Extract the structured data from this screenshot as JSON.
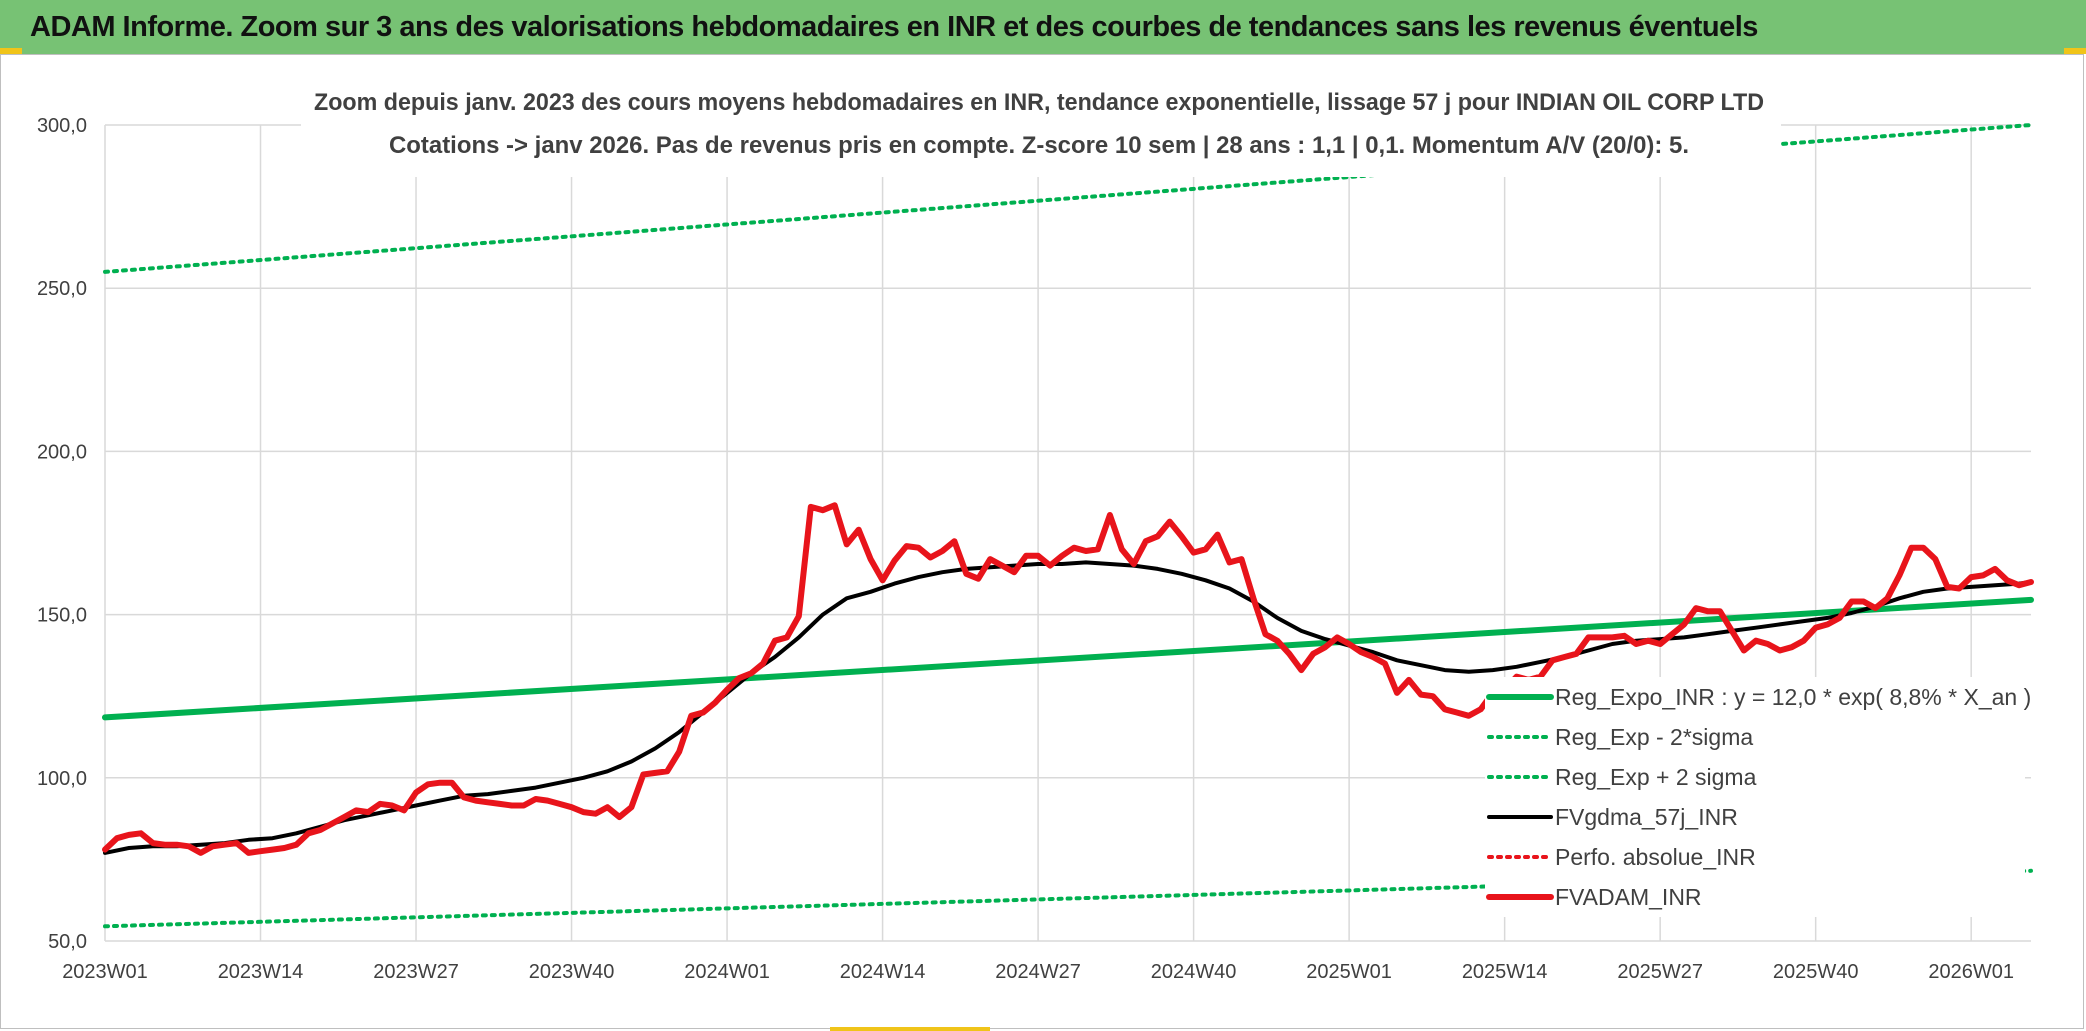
{
  "banner": {
    "title": "ADAM Informe. Zoom sur 3 ans des valorisations hebdomadaires en INR et des courbes de tendances sans les revenus éventuels"
  },
  "colors": {
    "banner_bg": "#77c274",
    "trend": "#00b050",
    "sma": "#000000",
    "price": "#e8141b",
    "grid": "#d9d9d9",
    "axis_text": "#404040"
  },
  "chart_data": {
    "type": "line",
    "title": "Zoom depuis janv. 2023 des cours moyens hebdomadaires en INR, tendance exponentielle, lissage 57 j pour INDIAN OIL CORP LTD",
    "subtitle": "Cotations -> janv 2026. Pas de revenus pris en compte. Z-score 10 sem | 28 ans : 1,1  | 0,1. Momentum A/V (20/0): 5.",
    "xlabel": "",
    "ylabel": "",
    "ylim": [
      50,
      300
    ],
    "yticks": [
      "50,0",
      "100,0",
      "150,0",
      "200,0",
      "250,0",
      "300,0"
    ],
    "xticks": [
      "2023W01",
      "2023W14",
      "2023W27",
      "2023W40",
      "2024W01",
      "2024W14",
      "2024W27",
      "2024W40",
      "2025W01",
      "2025W14",
      "2025W27",
      "2025W40",
      "2026W01"
    ],
    "x_range_weeks": [
      0,
      161
    ],
    "grid": true,
    "legend_position": "bottom-right",
    "series": [
      {
        "name": "Reg_Expo_INR : y = 12,0 * exp( 8,8% *  X_an )",
        "style": "solid-thick",
        "color": "#00b050",
        "points": [
          [
            0,
            118.5
          ],
          [
            161,
            154.5
          ]
        ]
      },
      {
        "name": "Reg_Exp - 2*sigma",
        "style": "dotted",
        "color": "#00b050",
        "points": [
          [
            0,
            54.5
          ],
          [
            161,
            71.5
          ]
        ]
      },
      {
        "name": "Reg_Exp + 2 sigma",
        "style": "dotted",
        "color": "#00b050",
        "points": [
          [
            0,
            255
          ],
          [
            161,
            300
          ]
        ]
      },
      {
        "name": "FVgdma_57j_INR",
        "style": "solid",
        "color": "#000000",
        "points": [
          [
            0,
            77
          ],
          [
            2,
            78.5
          ],
          [
            4,
            79
          ],
          [
            6,
            79
          ],
          [
            8,
            79.5
          ],
          [
            10,
            80
          ],
          [
            12,
            81
          ],
          [
            14,
            81.5
          ],
          [
            16,
            83
          ],
          [
            18,
            85
          ],
          [
            20,
            87
          ],
          [
            22,
            88.5
          ],
          [
            24,
            90
          ],
          [
            26,
            91.5
          ],
          [
            28,
            93
          ],
          [
            30,
            94.5
          ],
          [
            32,
            95
          ],
          [
            34,
            96
          ],
          [
            36,
            97
          ],
          [
            38,
            98.5
          ],
          [
            40,
            100
          ],
          [
            42,
            102
          ],
          [
            44,
            105
          ],
          [
            46,
            109
          ],
          [
            48,
            114
          ],
          [
            50,
            120
          ],
          [
            52,
            126
          ],
          [
            54,
            132
          ],
          [
            56,
            137
          ],
          [
            58,
            143
          ],
          [
            60,
            150
          ],
          [
            62,
            155
          ],
          [
            64,
            157
          ],
          [
            66,
            159.5
          ],
          [
            68,
            161.5
          ],
          [
            70,
            163
          ],
          [
            72,
            164
          ],
          [
            74,
            164.5
          ],
          [
            76,
            165
          ],
          [
            78,
            165.5
          ],
          [
            80,
            165.5
          ],
          [
            82,
            166
          ],
          [
            84,
            165.5
          ],
          [
            86,
            165
          ],
          [
            88,
            164
          ],
          [
            90,
            162.5
          ],
          [
            92,
            160.5
          ],
          [
            94,
            158
          ],
          [
            96,
            154
          ],
          [
            98,
            149
          ],
          [
            100,
            145
          ],
          [
            102,
            142.5
          ],
          [
            104,
            140.5
          ],
          [
            106,
            138.5
          ],
          [
            108,
            136
          ],
          [
            110,
            134.5
          ],
          [
            112,
            133
          ],
          [
            114,
            132.5
          ],
          [
            116,
            133
          ],
          [
            118,
            134
          ],
          [
            120,
            135.5
          ],
          [
            122,
            137
          ],
          [
            124,
            139
          ],
          [
            126,
            141
          ],
          [
            128,
            142
          ],
          [
            130,
            142.5
          ],
          [
            132,
            143
          ],
          [
            134,
            144
          ],
          [
            136,
            145
          ],
          [
            138,
            146
          ],
          [
            140,
            147
          ],
          [
            142,
            148
          ],
          [
            144,
            149
          ],
          [
            146,
            150.5
          ],
          [
            148,
            152.5
          ],
          [
            150,
            155
          ],
          [
            152,
            157
          ],
          [
            154,
            158
          ],
          [
            156,
            158.5
          ],
          [
            158,
            159
          ],
          [
            160,
            159.5
          ],
          [
            161,
            160
          ]
        ]
      },
      {
        "name": "Perfo. absolue_INR",
        "style": "dotted",
        "color": "#e8141b",
        "points": []
      },
      {
        "name": "FVADAM_INR",
        "style": "solid-thick",
        "color": "#e8141b",
        "points": [
          [
            0,
            78
          ],
          [
            1,
            81.5
          ],
          [
            2,
            82.5
          ],
          [
            3,
            83
          ],
          [
            4,
            80
          ],
          [
            5,
            79.5
          ],
          [
            6,
            79.5
          ],
          [
            7,
            79
          ],
          [
            8,
            77
          ],
          [
            9,
            79
          ],
          [
            10,
            79.5
          ],
          [
            11,
            80
          ],
          [
            12,
            77
          ],
          [
            13,
            77.5
          ],
          [
            14,
            78
          ],
          [
            15,
            78.5
          ],
          [
            16,
            79.5
          ],
          [
            17,
            83
          ],
          [
            18,
            84
          ],
          [
            19,
            86
          ],
          [
            20,
            88
          ],
          [
            21,
            90
          ],
          [
            22,
            89.5
          ],
          [
            23,
            92
          ],
          [
            24,
            91.5
          ],
          [
            25,
            90
          ],
          [
            26,
            95.5
          ],
          [
            27,
            98
          ],
          [
            28,
            98.5
          ],
          [
            29,
            98.5
          ],
          [
            30,
            94
          ],
          [
            31,
            93
          ],
          [
            32,
            92.5
          ],
          [
            33,
            92
          ],
          [
            34,
            91.5
          ],
          [
            35,
            91.5
          ],
          [
            36,
            93.5
          ],
          [
            37,
            93
          ],
          [
            38,
            92
          ],
          [
            39,
            91
          ],
          [
            40,
            89.5
          ],
          [
            41,
            89
          ],
          [
            42,
            91
          ],
          [
            43,
            88
          ],
          [
            44,
            91
          ],
          [
            45,
            101
          ],
          [
            46,
            101.5
          ],
          [
            47,
            102
          ],
          [
            48,
            108
          ],
          [
            49,
            119
          ],
          [
            50,
            120
          ],
          [
            51,
            123
          ],
          [
            52,
            127
          ],
          [
            53,
            130.5
          ],
          [
            54,
            132
          ],
          [
            55,
            135
          ],
          [
            56,
            142
          ],
          [
            57,
            143
          ],
          [
            58,
            149.5
          ],
          [
            59,
            183
          ],
          [
            60,
            182
          ],
          [
            61,
            183.5
          ],
          [
            62,
            171.5
          ],
          [
            63,
            176
          ],
          [
            64,
            167
          ],
          [
            65,
            160.5
          ],
          [
            66,
            166.5
          ],
          [
            67,
            171
          ],
          [
            68,
            170.5
          ],
          [
            69,
            167.5
          ],
          [
            70,
            169.5
          ],
          [
            71,
            172.5
          ],
          [
            72,
            162.5
          ],
          [
            73,
            161
          ],
          [
            74,
            167
          ],
          [
            75,
            165
          ],
          [
            76,
            163
          ],
          [
            77,
            168
          ],
          [
            78,
            168
          ],
          [
            79,
            165
          ],
          [
            80,
            168
          ],
          [
            81,
            170.5
          ],
          [
            82,
            169.5
          ],
          [
            83,
            170
          ],
          [
            84,
            180.5
          ],
          [
            85,
            170
          ],
          [
            86,
            165.5
          ],
          [
            87,
            172.5
          ],
          [
            88,
            174
          ],
          [
            89,
            178.5
          ],
          [
            90,
            174
          ],
          [
            91,
            169
          ],
          [
            92,
            170
          ],
          [
            93,
            174.5
          ],
          [
            94,
            166
          ],
          [
            95,
            167
          ],
          [
            96,
            155
          ],
          [
            97,
            144
          ],
          [
            98,
            142
          ],
          [
            99,
            138
          ],
          [
            100,
            133
          ],
          [
            101,
            138
          ],
          [
            102,
            140
          ],
          [
            103,
            143
          ],
          [
            104,
            141
          ],
          [
            105,
            138.5
          ],
          [
            106,
            137
          ],
          [
            107,
            135
          ],
          [
            108,
            126
          ],
          [
            109,
            130
          ],
          [
            110,
            125.5
          ],
          [
            111,
            125
          ],
          [
            112,
            121
          ],
          [
            113,
            120
          ],
          [
            114,
            119
          ],
          [
            115,
            121
          ],
          [
            116,
            126
          ],
          [
            117,
            127
          ],
          [
            118,
            131
          ],
          [
            119,
            130
          ],
          [
            120,
            131
          ],
          [
            121,
            136
          ],
          [
            122,
            137
          ],
          [
            123,
            138
          ],
          [
            124,
            143
          ],
          [
            125,
            143
          ],
          [
            126,
            143
          ],
          [
            127,
            143.5
          ],
          [
            128,
            141
          ],
          [
            129,
            142
          ],
          [
            130,
            141
          ],
          [
            131,
            144
          ],
          [
            132,
            147
          ],
          [
            133,
            152
          ],
          [
            134,
            151
          ],
          [
            135,
            151
          ],
          [
            136,
            145
          ],
          [
            137,
            139
          ],
          [
            138,
            142
          ],
          [
            139,
            141
          ],
          [
            140,
            139
          ],
          [
            141,
            140
          ],
          [
            142,
            142
          ],
          [
            143,
            146
          ],
          [
            144,
            147
          ],
          [
            145,
            149
          ],
          [
            146,
            154
          ],
          [
            147,
            154
          ],
          [
            148,
            152
          ],
          [
            149,
            155
          ],
          [
            150,
            162
          ],
          [
            151,
            170.5
          ],
          [
            152,
            170.5
          ],
          [
            153,
            167
          ],
          [
            154,
            158.5
          ],
          [
            155,
            158
          ],
          [
            156,
            161.5
          ],
          [
            157,
            162
          ],
          [
            158,
            164
          ],
          [
            159,
            160.5
          ],
          [
            160,
            159
          ],
          [
            161,
            160
          ]
        ]
      }
    ]
  }
}
